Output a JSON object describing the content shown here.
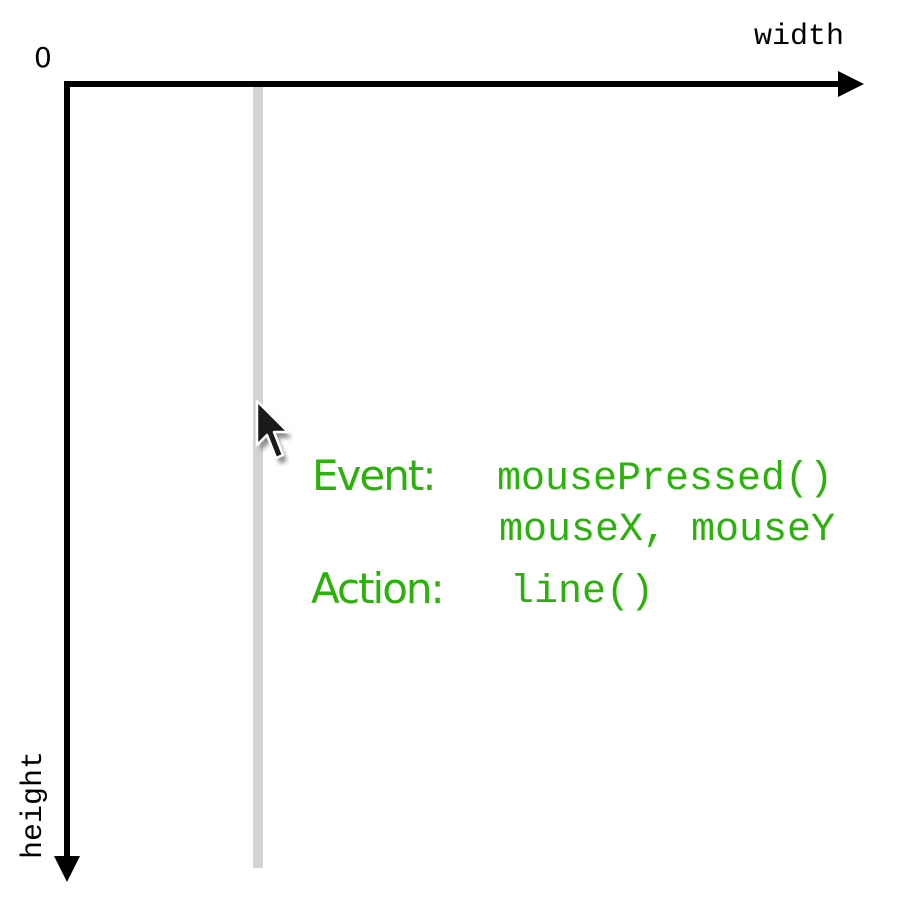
{
  "axes": {
    "origin_label": "0",
    "x_label": "width",
    "y_label": "height"
  },
  "annotation": {
    "event_heading": "Event:",
    "event_function": "mousePressed()",
    "event_variables": "mouseX, mouseY",
    "action_heading": "Action:",
    "action_function": "line()"
  },
  "colors": {
    "axis": "#000000",
    "drawn_line": "#d3d3d3",
    "annotation_text": "#2ab20a"
  },
  "icons": {
    "cursor": "mouse-pointer-icon"
  }
}
